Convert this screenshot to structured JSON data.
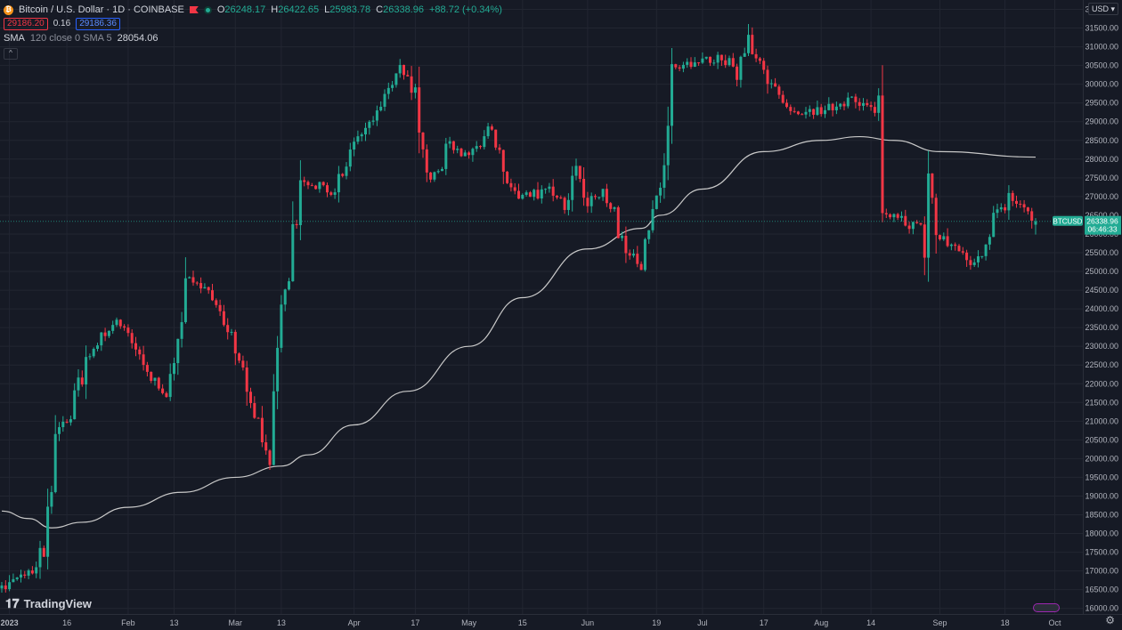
{
  "legend": {
    "symbol": "Bitcoin / U.S. Dollar · 1D · COINBASE",
    "o_label": "O",
    "o_value": "26248.17",
    "h_label": "H",
    "h_value": "26422.65",
    "l_label": "L",
    "l_value": "25983.78",
    "c_label": "C",
    "c_value": "26338.96",
    "change": "+88.72 (+0.34%)",
    "bid": "29186.20",
    "spread": "0.16",
    "ask": "29186.36",
    "sma_title": "SMA",
    "sma_params": "120 close 0 SMA 5",
    "sma_value": "28054.06",
    "collapse": "^"
  },
  "currency_button": "USD",
  "brand": "TradingView",
  "price_tag": {
    "symbol": "BTCUSD",
    "price": "26338.96",
    "countdown": "06:46:33"
  },
  "colors": {
    "up": "#22ab94",
    "down": "#f23645",
    "sma": "#c9c9c9",
    "grid": "#222631",
    "background": "#161a25"
  },
  "chart_data": {
    "type": "candlestick",
    "y_ticks": [
      "16000.00",
      "16500.00",
      "17000.00",
      "17500.00",
      "18000.00",
      "18500.00",
      "19000.00",
      "19500.00",
      "20000.00",
      "20500.00",
      "21000.00",
      "21500.00",
      "22000.00",
      "22500.00",
      "23000.00",
      "23500.00",
      "24000.00",
      "24500.00",
      "25000.00",
      "25500.00",
      "26000.00",
      "26500.00",
      "27000.00",
      "27500.00",
      "28000.00",
      "28500.00",
      "29000.00",
      "29500.00",
      "30000.00",
      "30500.00",
      "31000.00",
      "31500.00",
      "32000.00"
    ],
    "ylim": [
      15850,
      32250
    ],
    "x_ticks": [
      {
        "label": "2023",
        "date": "2023-01-01"
      },
      {
        "label": "16",
        "date": "2023-01-16"
      },
      {
        "label": "Feb",
        "date": "2023-02-01"
      },
      {
        "label": "13",
        "date": "2023-02-13"
      },
      {
        "label": "Mar",
        "date": "2023-03-01"
      },
      {
        "label": "13",
        "date": "2023-03-13"
      },
      {
        "label": "Apr",
        "date": "2023-04-01"
      },
      {
        "label": "17",
        "date": "2023-04-17"
      },
      {
        "label": "May",
        "date": "2023-05-01"
      },
      {
        "label": "15",
        "date": "2023-05-15"
      },
      {
        "label": "Jun",
        "date": "2023-06-01"
      },
      {
        "label": "19",
        "date": "2023-06-19"
      },
      {
        "label": "Jul",
        "date": "2023-07-01"
      },
      {
        "label": "17",
        "date": "2023-07-17"
      },
      {
        "label": "Aug",
        "date": "2023-08-01"
      },
      {
        "label": "14",
        "date": "2023-08-14"
      },
      {
        "label": "Sep",
        "date": "2023-09-01"
      },
      {
        "label": "18",
        "date": "2023-09-18"
      },
      {
        "label": "Oct",
        "date": "2023-10-01"
      }
    ],
    "key_closes": [
      [
        "2022-12-30",
        16550
      ],
      [
        "2023-01-09",
        17150
      ],
      [
        "2023-01-12",
        18850
      ],
      [
        "2023-01-14",
        20900
      ],
      [
        "2023-01-17",
        21150
      ],
      [
        "2023-01-21",
        22700
      ],
      [
        "2023-01-29",
        23750
      ],
      [
        "2023-02-09",
        21800
      ],
      [
        "2023-02-12",
        21750
      ],
      [
        "2023-02-16",
        24700
      ],
      [
        "2023-02-20",
        24800
      ],
      [
        "2023-02-27",
        23500
      ],
      [
        "2023-03-03",
        22350
      ],
      [
        "2023-03-09",
        20200
      ],
      [
        "2023-03-10",
        20350
      ],
      [
        "2023-03-14",
        24200
      ],
      [
        "2023-03-18",
        27400
      ],
      [
        "2023-03-27",
        27100
      ],
      [
        "2023-04-01",
        28450
      ],
      [
        "2023-04-10",
        29700
      ],
      [
        "2023-04-13",
        30400
      ],
      [
        "2023-04-16",
        30300
      ],
      [
        "2023-04-21",
        27300
      ],
      [
        "2023-04-26",
        28400
      ],
      [
        "2023-05-01",
        28100
      ],
      [
        "2023-05-06",
        28900
      ],
      [
        "2023-05-10",
        27600
      ],
      [
        "2023-05-14",
        26900
      ],
      [
        "2023-05-23",
        27200
      ],
      [
        "2023-05-26",
        26500
      ],
      [
        "2023-05-29",
        27700
      ],
      [
        "2023-06-01",
        26800
      ],
      [
        "2023-06-06",
        27200
      ],
      [
        "2023-06-10",
        25800
      ],
      [
        "2023-06-15",
        25100
      ],
      [
        "2023-06-18",
        26400
      ],
      [
        "2023-06-21",
        28300
      ],
      [
        "2023-06-23",
        30500
      ],
      [
        "2023-07-01",
        30600
      ],
      [
        "2023-07-06",
        30700
      ],
      [
        "2023-07-10",
        30400
      ],
      [
        "2023-07-13",
        31400
      ],
      [
        "2023-07-18",
        30000
      ],
      [
        "2023-07-24",
        29300
      ],
      [
        "2023-08-01",
        29300
      ],
      [
        "2023-08-09",
        29600
      ],
      [
        "2023-08-14",
        29300
      ],
      [
        "2023-08-16",
        28700
      ],
      [
        "2023-08-17",
        26600
      ],
      [
        "2023-08-28",
        26100
      ],
      [
        "2023-08-29",
        27700
      ],
      [
        "2023-08-31",
        26000
      ],
      [
        "2023-09-11",
        25150
      ],
      [
        "2023-09-15",
        26600
      ],
      [
        "2023-09-18",
        26800
      ],
      [
        "2023-09-19",
        27200
      ],
      [
        "2023-09-23",
        26600
      ],
      [
        "2023-09-26",
        26339
      ]
    ],
    "sma_120": [
      [
        "2022-12-30",
        18600
      ],
      [
        "2023-01-06",
        18400
      ],
      [
        "2023-01-12",
        18150
      ],
      [
        "2023-01-20",
        18300
      ],
      [
        "2023-02-01",
        18700
      ],
      [
        "2023-02-15",
        19100
      ],
      [
        "2023-03-01",
        19500
      ],
      [
        "2023-03-13",
        19800
      ],
      [
        "2023-03-20",
        20100
      ],
      [
        "2023-04-01",
        20900
      ],
      [
        "2023-04-15",
        21800
      ],
      [
        "2023-05-01",
        23000
      ],
      [
        "2023-05-15",
        24300
      ],
      [
        "2023-06-01",
        25600
      ],
      [
        "2023-06-15",
        26150
      ],
      [
        "2023-06-20",
        26500
      ],
      [
        "2023-07-01",
        27200
      ],
      [
        "2023-07-17",
        28200
      ],
      [
        "2023-08-01",
        28500
      ],
      [
        "2023-08-11",
        28600
      ],
      [
        "2023-08-20",
        28500
      ],
      [
        "2023-09-01",
        28200
      ],
      [
        "2023-09-26",
        28054
      ]
    ]
  }
}
